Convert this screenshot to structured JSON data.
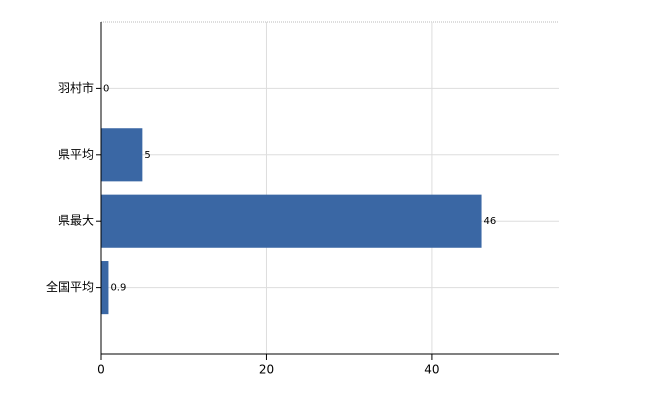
{
  "chart_data": {
    "type": "hbar",
    "categories": [
      "羽村市",
      "県平均",
      "県最大",
      "全国平均"
    ],
    "values": [
      0,
      5,
      46,
      0.9
    ],
    "color": "#3a67a4",
    "xlim": [
      0,
      55
    ],
    "xticks": [
      0,
      20,
      40
    ],
    "grid": true
  }
}
